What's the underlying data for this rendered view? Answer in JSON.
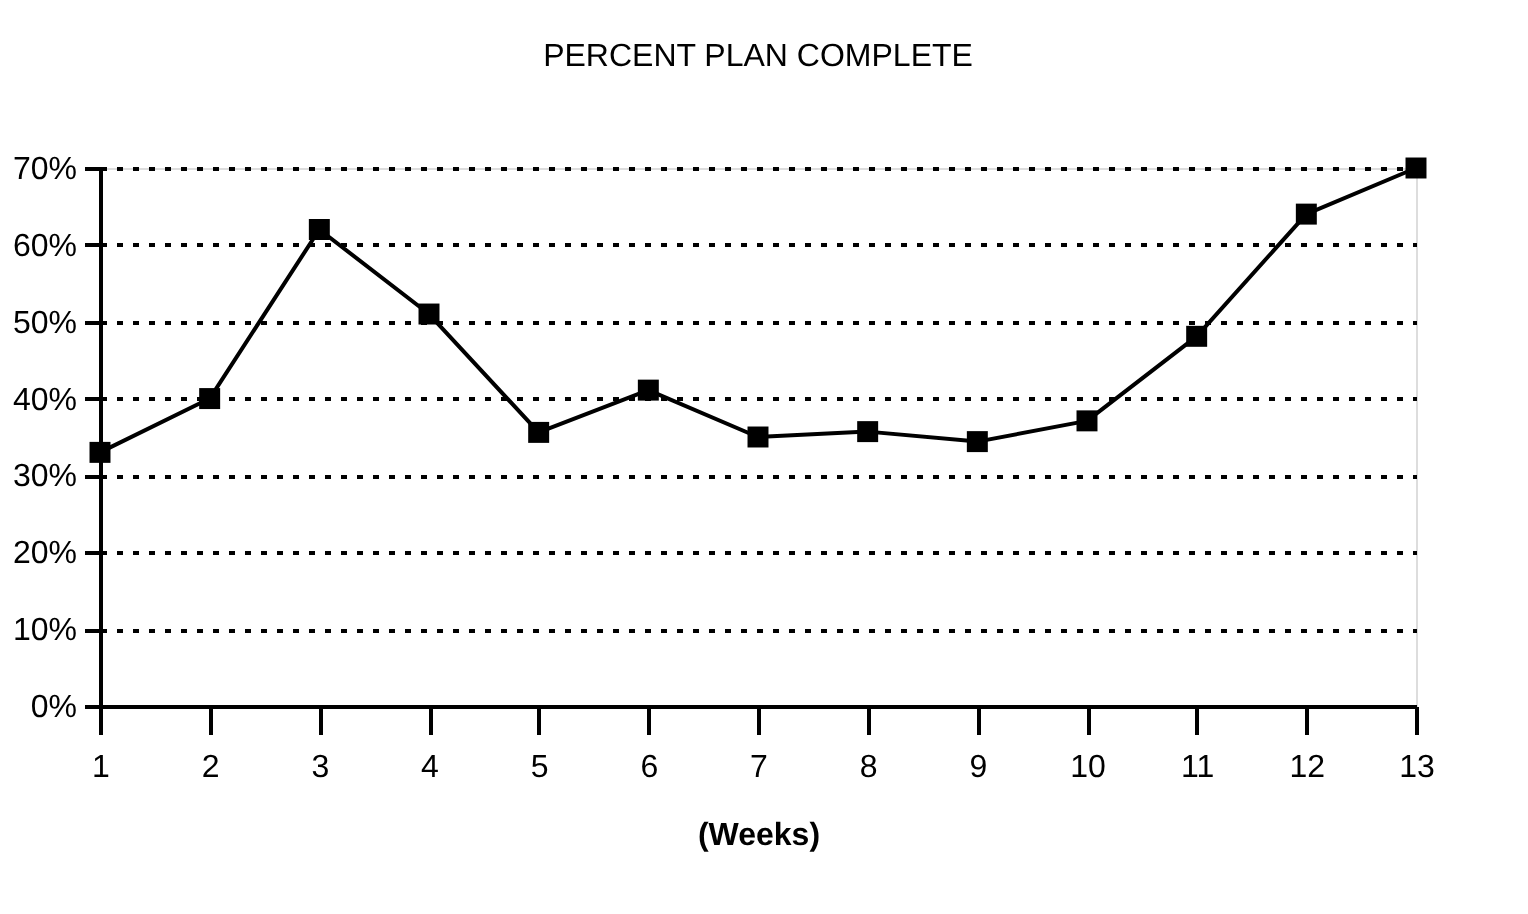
{
  "chart_data": {
    "type": "line",
    "title": "PERCENT PLAN COMPLETE",
    "xlabel": "(Weeks)",
    "x": [
      1,
      2,
      3,
      4,
      5,
      6,
      7,
      8,
      9,
      10,
      11,
      12,
      13
    ],
    "xlim": [
      1,
      13
    ],
    "xticks": [
      1,
      2,
      3,
      4,
      5,
      6,
      7,
      8,
      9,
      10,
      11,
      12,
      13
    ],
    "series": [
      {
        "color": "#000000",
        "values": [
          33,
          40,
          62,
          51,
          35.6,
          41.1,
          35,
          35.7,
          34.4,
          37.1,
          48.1,
          64,
          70
        ]
      }
    ],
    "ylim": [
      0,
      70
    ],
    "yticks": [
      {
        "value": 0,
        "label": "0%"
      },
      {
        "value": 10,
        "label": "10%"
      },
      {
        "value": 20,
        "label": "20%"
      },
      {
        "value": 30,
        "label": "30%"
      },
      {
        "value": 40,
        "label": "40%"
      },
      {
        "value": 50,
        "label": "50%"
      },
      {
        "value": 60,
        "label": "60%"
      },
      {
        "value": 70,
        "label": "70%"
      }
    ],
    "grid": "y",
    "marker": "square",
    "line_style": "solid"
  }
}
